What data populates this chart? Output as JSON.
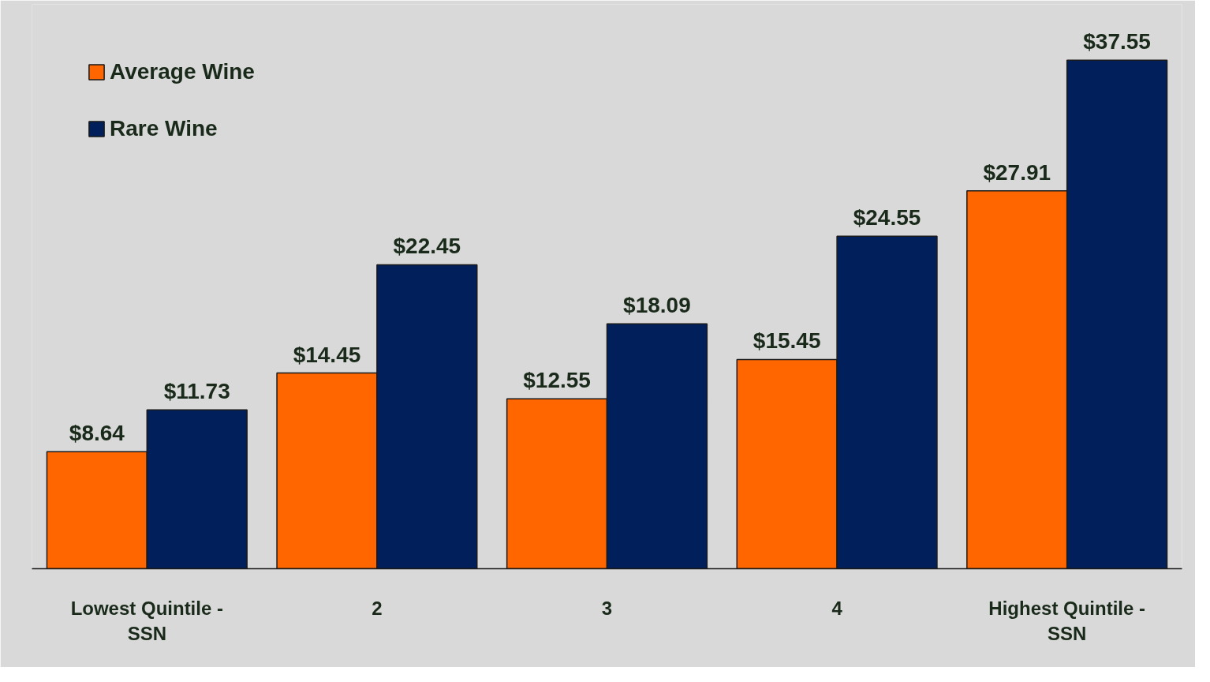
{
  "chart_data": {
    "type": "bar",
    "categories": [
      "Lowest Quintile - SSN",
      "2",
      "3",
      "4",
      "Highest Quintile - SSN"
    ],
    "series": [
      {
        "name": "Average Wine",
        "color": "#ff6600",
        "values": [
          8.64,
          14.45,
          12.55,
          15.45,
          27.91
        ],
        "value_labels": [
          "$8.64",
          "$14.45",
          "$12.55",
          "$15.45",
          "$27.91"
        ]
      },
      {
        "name": "Rare Wine",
        "color": "#001f5b",
        "values": [
          11.73,
          22.45,
          18.09,
          24.55,
          37.55
        ],
        "value_labels": [
          "$11.73",
          "$22.45",
          "$18.09",
          "$24.55",
          "$37.55"
        ]
      }
    ],
    "legend": "top left",
    "grid": false
  }
}
